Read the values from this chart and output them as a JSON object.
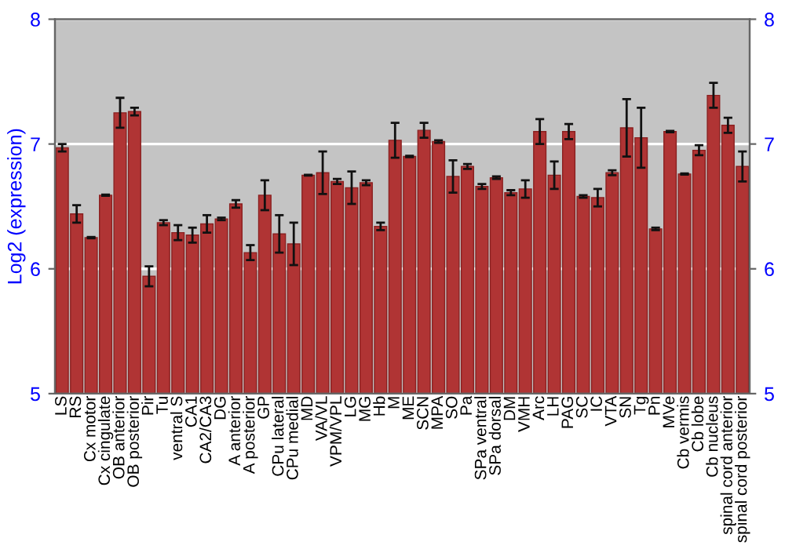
{
  "chart_data": {
    "type": "bar",
    "ylabel": "Log2 (expression)",
    "categories": [
      "LS",
      "RS",
      "Cx motor",
      "Cx cingulate",
      "OB anterior",
      "OB posterior",
      "Pir",
      "Tu",
      "ventral S",
      "CA1",
      "CA2/CA3",
      "DG",
      "A anterior",
      "A posterior",
      "GP",
      "CPu lateral",
      "CPu medial",
      "MD",
      "VA/VL",
      "VPM/VPL",
      "LG",
      "MG",
      "Hb",
      "M",
      "ME",
      "SCN",
      "MPA",
      "SO",
      "Pa",
      "SPa ventral",
      "SPa dorsal",
      "DM",
      "VMH",
      "Arc",
      "LH",
      "PAG",
      "SC",
      "IC",
      "VTA",
      "SN",
      "Tg",
      "Pn",
      "MVe",
      "Cb vermis",
      "Cb lobe",
      "Cb nucleus",
      "spinal cord anterior",
      "spinal cord posterior"
    ],
    "values": [
      6.97,
      6.44,
      6.25,
      6.59,
      7.25,
      7.26,
      5.94,
      6.37,
      6.29,
      6.27,
      6.36,
      6.4,
      6.52,
      6.13,
      6.59,
      6.28,
      6.2,
      6.75,
      6.77,
      6.7,
      6.65,
      6.69,
      6.34,
      7.03,
      6.9,
      7.11,
      7.02,
      6.74,
      6.82,
      6.66,
      6.73,
      6.61,
      6.64,
      7.1,
      6.75,
      7.1,
      6.58,
      6.57,
      6.77,
      7.13,
      7.05,
      6.32,
      7.1,
      6.76,
      6.95,
      7.39,
      7.15,
      6.82
    ],
    "errors": [
      0.03,
      0.07,
      0.005,
      0.005,
      0.12,
      0.03,
      0.08,
      0.02,
      0.06,
      0.06,
      0.07,
      0.01,
      0.03,
      0.06,
      0.12,
      0.15,
      0.17,
      0.003,
      0.17,
      0.02,
      0.13,
      0.02,
      0.03,
      0.14,
      0.005,
      0.06,
      0.01,
      0.13,
      0.02,
      0.02,
      0.01,
      0.02,
      0.07,
      0.1,
      0.11,
      0.06,
      0.01,
      0.07,
      0.02,
      0.23,
      0.24,
      0.01,
      0.005,
      0.005,
      0.04,
      0.1,
      0.06,
      0.12
    ],
    "color": "#b03434",
    "ylim": [
      5,
      8
    ],
    "yticks": [
      5,
      6,
      7,
      8
    ],
    "y2lim": [
      5,
      8
    ],
    "y2ticks": [
      5,
      6,
      7,
      8
    ],
    "grid": "y"
  }
}
